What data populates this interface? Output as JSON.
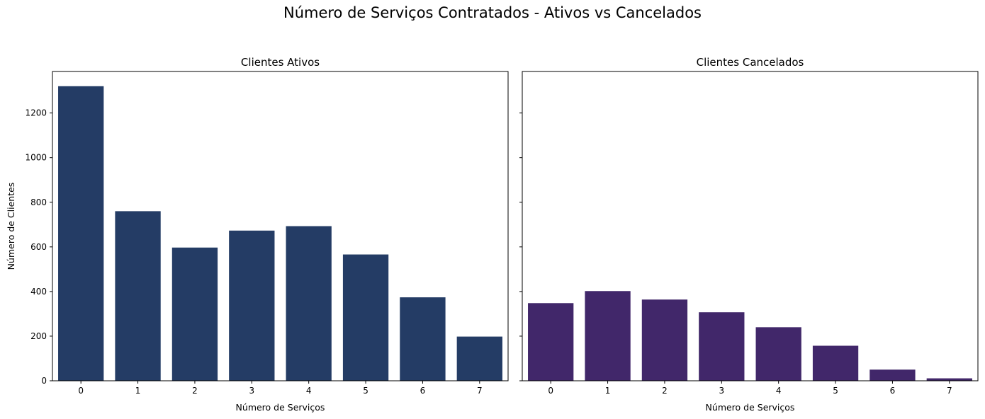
{
  "suptitle": "Número de Serviços Contratados - Ativos vs Cancelados",
  "chart_data": [
    {
      "type": "bar",
      "title": "Clientes Ativos",
      "xlabel": "Número de Serviços",
      "ylabel": "Número de Clientes",
      "categories": [
        "0",
        "1",
        "2",
        "3",
        "4",
        "5",
        "6",
        "7"
      ],
      "values": [
        1320,
        760,
        597,
        673,
        693,
        566,
        374,
        198
      ],
      "ylim": [
        0,
        1386
      ],
      "yticks": [
        0,
        200,
        400,
        600,
        800,
        1000,
        1200
      ],
      "color": "#243c65",
      "grid": false
    },
    {
      "type": "bar",
      "title": "Clientes Cancelados",
      "xlabel": "Número de Serviços",
      "ylabel": "",
      "categories": [
        "0",
        "1",
        "2",
        "3",
        "4",
        "5",
        "6",
        "7"
      ],
      "values": [
        348,
        402,
        364,
        307,
        240,
        157,
        50,
        11
      ],
      "ylim": [
        0,
        1386
      ],
      "yticks": [
        0,
        200,
        400,
        600,
        800,
        1000,
        1200
      ],
      "shared_y": true,
      "color": "#41276a",
      "grid": false
    }
  ]
}
